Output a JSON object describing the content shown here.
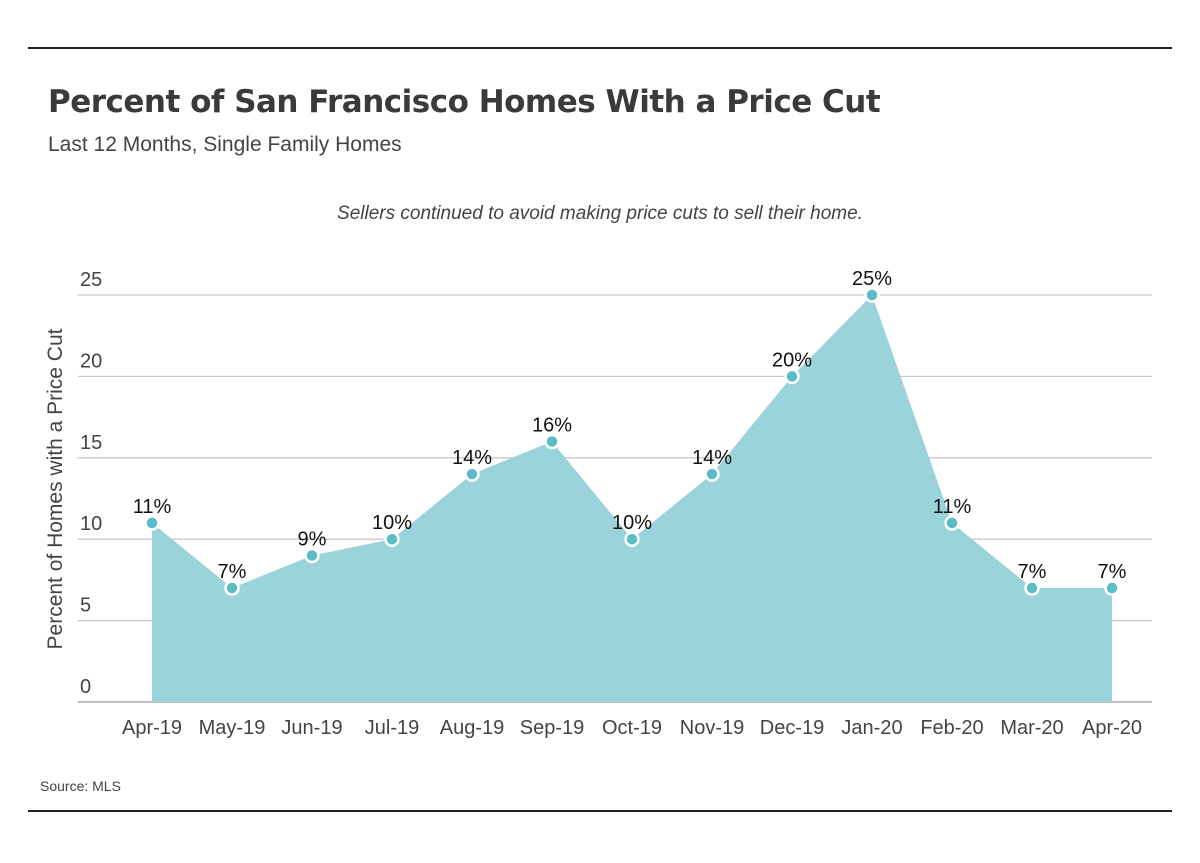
{
  "header": {
    "title": "Percent of San Francisco Homes With a Price Cut",
    "subtitle": "Last 12 Months, Single Family Homes",
    "annotation": "Sellers continued to avoid making price cuts to sell their home."
  },
  "footer": {
    "source": "Source: MLS"
  },
  "chart_data": {
    "type": "area",
    "title": "Percent of San Francisco Homes With a Price Cut",
    "subtitle": "Last 12 Months, Single Family Homes",
    "xlabel": "",
    "ylabel": "Percent of Homes with a Price Cut",
    "categories": [
      "Apr-19",
      "May-19",
      "Jun-19",
      "Jul-19",
      "Aug-19",
      "Sep-19",
      "Oct-19",
      "Nov-19",
      "Dec-19",
      "Jan-20",
      "Feb-20",
      "Mar-20",
      "Apr-20"
    ],
    "values": [
      11,
      7,
      9,
      10,
      14,
      16,
      10,
      14,
      20,
      25,
      11,
      7,
      7
    ],
    "data_labels": [
      "11%",
      "7%",
      "9%",
      "10%",
      "14%",
      "16%",
      "10%",
      "14%",
      "20%",
      "25%",
      "11%",
      "7%",
      "7%"
    ],
    "yticks": [
      "0",
      "5",
      "10",
      "15",
      "20",
      "25"
    ],
    "ylim": [
      0,
      25
    ],
    "grid": true,
    "legend": "none",
    "colors": {
      "area_fill": "#9bd3db",
      "marker_fill": "#5bbcc8",
      "marker_stroke": "#ffffff",
      "gridline": "#c8c8c8"
    }
  }
}
